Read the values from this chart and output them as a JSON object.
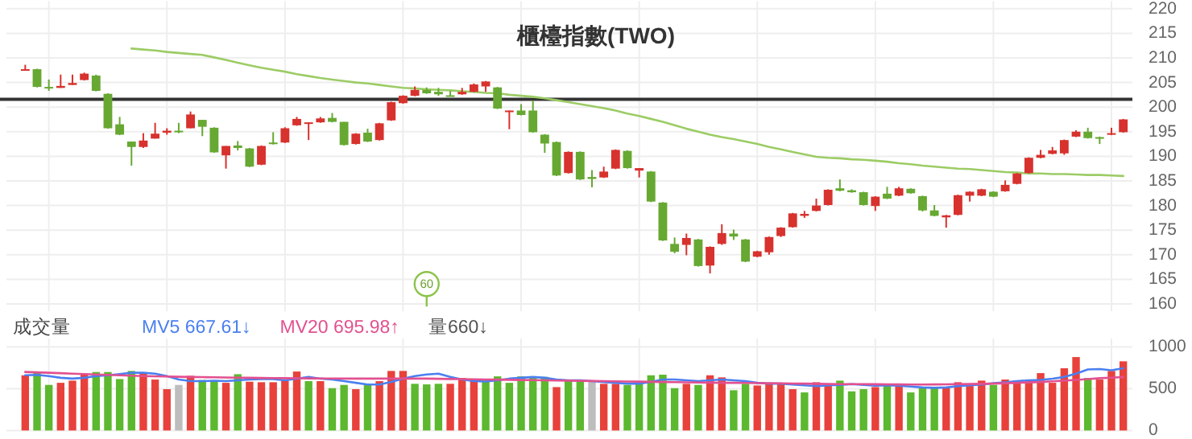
{
  "chart_data": [
    {
      "type": "candlestick",
      "title": "櫃檯指數(TWO)",
      "categories": [
        null,
        null,
        null,
        null,
        null,
        null,
        null,
        null,
        null,
        null,
        null,
        null,
        null,
        null,
        null,
        null,
        null,
        null,
        null,
        null,
        null,
        null,
        null,
        null,
        null,
        null,
        null,
        null,
        null,
        null,
        null,
        null,
        null,
        null,
        null,
        null,
        null,
        null,
        null,
        null,
        null,
        null,
        null,
        null,
        null,
        null,
        null,
        null,
        null,
        null,
        null,
        null,
        null,
        null,
        null,
        null,
        null,
        null,
        null,
        null,
        null,
        null,
        null,
        null,
        null,
        null,
        null,
        null,
        null,
        null,
        null,
        null,
        null,
        null,
        null,
        null,
        null,
        null,
        null,
        null,
        null,
        null,
        null,
        null,
        null,
        null,
        null,
        null,
        null,
        null,
        null,
        null,
        null,
        null
      ],
      "ohlc": [
        [
          207.5,
          208.6,
          207.4,
          207.7
        ],
        [
          207.7,
          207.8,
          204.0,
          204.1
        ],
        [
          204.1,
          205.6,
          203.3,
          203.8
        ],
        [
          203.9,
          206.6,
          203.9,
          204.3
        ],
        [
          204.5,
          206.6,
          204.5,
          204.9
        ],
        [
          205.5,
          207.0,
          205.4,
          206.8
        ],
        [
          206.4,
          206.6,
          203.2,
          203.3
        ],
        [
          202.7,
          202.8,
          195.6,
          195.7
        ],
        [
          196.5,
          198.0,
          194.3,
          194.4
        ],
        [
          193.0,
          193.0,
          188.1,
          191.9
        ],
        [
          191.9,
          194.7,
          191.7,
          193.2
        ],
        [
          193.6,
          196.8,
          193.6,
          194.6
        ],
        [
          194.8,
          195.7,
          194.4,
          195.2
        ],
        [
          195.2,
          196.8,
          194.7,
          194.9
        ],
        [
          195.7,
          199.1,
          195.7,
          198.5
        ],
        [
          197.4,
          197.4,
          194.1,
          196.0
        ],
        [
          195.8,
          195.9,
          190.7,
          190.8
        ],
        [
          190.2,
          192.1,
          187.5,
          192.1
        ],
        [
          192.2,
          193.1,
          191.2,
          191.7
        ],
        [
          191.6,
          191.7,
          187.8,
          187.9
        ],
        [
          188.3,
          192.2,
          188.2,
          192.1
        ],
        [
          192.8,
          194.9,
          192.4,
          192.5
        ],
        [
          192.8,
          195.9,
          192.7,
          195.7
        ],
        [
          196.3,
          198.0,
          196.2,
          197.6
        ],
        [
          196.6,
          196.9,
          193.3,
          196.9
        ],
        [
          196.9,
          198.0,
          196.8,
          197.7
        ],
        [
          197.8,
          198.8,
          196.9,
          197.0
        ],
        [
          197.0,
          197.0,
          192.2,
          192.3
        ],
        [
          192.5,
          194.7,
          192.4,
          194.6
        ],
        [
          194.8,
          195.6,
          192.9,
          193.0
        ],
        [
          193.3,
          196.8,
          193.2,
          196.7
        ],
        [
          197.3,
          201.1,
          197.2,
          201.0
        ],
        [
          200.8,
          202.4,
          200.7,
          202.3
        ],
        [
          202.3,
          204.2,
          202.2,
          203.5
        ],
        [
          203.5,
          204.0,
          202.7,
          202.8
        ],
        [
          203.1,
          203.9,
          202.3,
          202.6
        ],
        [
          202.4,
          203.3,
          202.2,
          202.3
        ],
        [
          202.6,
          203.9,
          202.5,
          203.1
        ],
        [
          203.1,
          204.8,
          203.0,
          204.6
        ],
        [
          204.2,
          205.3,
          203.1,
          205.2
        ],
        [
          204.0,
          204.1,
          199.6,
          199.7
        ],
        [
          199.0,
          199.3,
          195.5,
          199.3
        ],
        [
          199.3,
          200.6,
          198.3,
          198.4
        ],
        [
          199.3,
          201.3,
          194.8,
          194.9
        ],
        [
          194.4,
          194.5,
          190.7,
          192.6
        ],
        [
          192.9,
          193.0,
          186.0,
          186.1
        ],
        [
          186.6,
          191.0,
          186.5,
          190.9
        ],
        [
          190.9,
          191.0,
          185.2,
          185.3
        ],
        [
          185.8,
          187.2,
          183.7,
          185.4
        ],
        [
          185.7,
          187.9,
          185.6,
          186.9
        ],
        [
          187.5,
          191.4,
          187.4,
          191.3
        ],
        [
          191.1,
          191.2,
          187.5,
          187.6
        ],
        [
          187.1,
          187.6,
          185.7,
          187.6
        ],
        [
          186.9,
          187.0,
          180.7,
          180.8
        ],
        [
          180.6,
          180.7,
          172.8,
          172.9
        ],
        [
          172.2,
          173.5,
          170.3,
          170.6
        ],
        [
          172.0,
          174.3,
          169.9,
          173.4
        ],
        [
          173.1,
          173.2,
          167.6,
          167.7
        ],
        [
          167.8,
          171.7,
          166.2,
          171.6
        ],
        [
          172.2,
          176.2,
          172.0,
          174.4
        ],
        [
          174.3,
          175.1,
          173.0,
          173.7
        ],
        [
          173.1,
          173.2,
          168.5,
          168.6
        ],
        [
          169.6,
          170.8,
          169.5,
          170.7
        ],
        [
          170.5,
          173.7,
          170.0,
          173.6
        ],
        [
          173.8,
          175.6,
          173.6,
          175.5
        ],
        [
          175.6,
          178.5,
          175.5,
          178.4
        ],
        [
          177.9,
          178.9,
          177.5,
          178.3
        ],
        [
          178.9,
          181.4,
          178.8,
          180.0
        ],
        [
          180.1,
          183.3,
          180.0,
          183.2
        ],
        [
          183.5,
          185.3,
          182.9,
          183.0
        ],
        [
          183.1,
          183.3,
          182.6,
          182.7
        ],
        [
          182.7,
          182.8,
          180.0,
          180.1
        ],
        [
          179.9,
          181.9,
          178.9,
          181.8
        ],
        [
          182.4,
          183.8,
          181.3,
          181.4
        ],
        [
          182.0,
          183.8,
          181.9,
          183.5
        ],
        [
          183.4,
          183.5,
          182.4,
          182.5
        ],
        [
          181.9,
          182.0,
          178.8,
          179.0
        ],
        [
          179.0,
          180.1,
          177.8,
          177.9
        ],
        [
          177.6,
          178.1,
          175.5,
          178.0
        ],
        [
          178.1,
          182.2,
          178.0,
          182.1
        ],
        [
          182.0,
          182.9,
          180.8,
          182.8
        ],
        [
          182.0,
          183.4,
          181.9,
          183.3
        ],
        [
          182.8,
          182.9,
          181.7,
          181.8
        ],
        [
          182.9,
          185.1,
          182.8,
          184.2
        ],
        [
          184.4,
          186.6,
          184.3,
          186.5
        ],
        [
          186.6,
          189.8,
          186.5,
          189.7
        ],
        [
          189.7,
          191.3,
          189.6,
          190.3
        ],
        [
          190.5,
          191.9,
          190.4,
          191.2
        ],
        [
          190.6,
          193.4,
          190.3,
          193.3
        ],
        [
          194.0,
          195.3,
          193.9,
          195.0
        ],
        [
          195.0,
          195.8,
          193.6,
          193.7
        ],
        [
          193.9,
          194.0,
          192.5,
          193.7
        ],
        [
          194.4,
          195.8,
          194.3,
          194.7
        ],
        [
          194.9,
          197.6,
          194.8,
          197.5
        ]
      ],
      "colors": [
        "#d7322e",
        "#67a832",
        "#67a832",
        "#d7322e",
        "#d7322e",
        "#d7322e",
        "#67a832",
        "#67a832",
        "#67a832",
        "#67a832",
        "#d7322e",
        "#d7322e",
        "#d7322e",
        "#67a832",
        "#d7322e",
        "#67a832",
        "#67a832",
        "#d7322e",
        "#67a832",
        "#67a832",
        "#d7322e",
        "#67a832",
        "#d7322e",
        "#d7322e",
        "#d7322e",
        "#d7322e",
        "#67a832",
        "#67a832",
        "#d7322e",
        "#67a832",
        "#d7322e",
        "#d7322e",
        "#d7322e",
        "#d7322e",
        "#67a832",
        "#67a832",
        "#67a832",
        "#d7322e",
        "#d7322e",
        "#d7322e",
        "#67a832",
        "#d7322e",
        "#67a832",
        "#67a832",
        "#67a832",
        "#67a832",
        "#d7322e",
        "#67a832",
        "#67a832",
        "#d7322e",
        "#d7322e",
        "#67a832",
        "#d7322e",
        "#67a832",
        "#67a832",
        "#67a832",
        "#d7322e",
        "#67a832",
        "#d7322e",
        "#d7322e",
        "#67a832",
        "#67a832",
        "#d7322e",
        "#d7322e",
        "#d7322e",
        "#d7322e",
        "#d7322e",
        "#d7322e",
        "#d7322e",
        "#67a832",
        "#67a832",
        "#67a832",
        "#d7322e",
        "#67a832",
        "#d7322e",
        "#67a832",
        "#67a832",
        "#67a832",
        "#d7322e",
        "#d7322e",
        "#d7322e",
        "#d7322e",
        "#67a832",
        "#d7322e",
        "#d7322e",
        "#d7322e",
        "#d7322e",
        "#d7322e",
        "#d7322e",
        "#d7322e",
        "#67a832",
        "#67a832",
        "#d7322e",
        "#d7322e"
      ],
      "series": [
        {
          "type": "line",
          "color": "#9ccc65",
          "values": [
            null,
            null,
            null,
            null,
            null,
            null,
            null,
            null,
            null,
            211.9,
            211.7,
            211.5,
            211.2,
            211.0,
            210.8,
            210.6,
            210.1,
            209.6,
            209.0,
            208.5,
            208.0,
            207.6,
            207.2,
            206.7,
            206.3,
            205.9,
            205.6,
            205.3,
            205.0,
            204.8,
            204.5,
            204.2,
            203.9,
            203.8,
            203.6,
            203.5,
            203.4,
            203.2,
            203.1,
            202.9,
            202.8,
            202.5,
            202.3,
            202.1,
            201.8,
            201.4,
            201.0,
            200.6,
            200.2,
            199.8,
            199.3,
            198.7,
            198.2,
            197.6,
            197.0,
            196.3,
            195.6,
            195.0,
            194.4,
            193.9,
            193.5,
            193.0,
            192.5,
            191.9,
            191.4,
            190.9,
            190.4,
            189.9,
            189.7,
            189.6,
            189.4,
            189.3,
            189.1,
            188.9,
            188.6,
            188.4,
            188.1,
            187.9,
            187.7,
            187.5,
            187.4,
            187.2,
            187.0,
            186.8,
            186.7,
            186.5,
            186.5,
            186.4,
            186.4,
            186.3,
            186.2,
            186.2,
            186.1,
            186.0
          ]
        }
      ],
      "ref_lines": [
        {
          "axis": "y",
          "value": 201.6,
          "color": "#333333"
        }
      ],
      "annotations": [
        "60"
      ],
      "ylim": [
        158.5,
        221.5
      ],
      "yticks": [
        160,
        165,
        170,
        175,
        180,
        185,
        190,
        195,
        200,
        205,
        210,
        215,
        220
      ],
      "grid": true,
      "tick_labels": "y"
    },
    {
      "type": "bar",
      "title": "成交量",
      "categories": [
        null,
        null,
        null,
        null,
        null,
        null,
        null,
        null,
        null,
        null,
        null,
        null,
        null,
        null,
        null,
        null,
        null,
        null,
        null,
        null,
        null,
        null,
        null,
        null,
        null,
        null,
        null,
        null,
        null,
        null,
        null,
        null,
        null,
        null,
        null,
        null,
        null,
        null,
        null,
        null,
        null,
        null,
        null,
        null,
        null,
        null,
        null,
        null,
        null,
        null,
        null,
        null,
        null,
        null,
        null,
        null,
        null,
        null,
        null,
        null,
        null,
        null,
        null,
        null,
        null,
        null,
        null,
        null,
        null,
        null,
        null,
        null,
        null,
        null,
        null,
        null,
        null,
        null,
        null,
        null,
        null,
        null,
        null,
        null,
        null,
        null,
        null,
        null,
        null,
        null,
        null,
        null,
        null,
        null
      ],
      "series": [
        {
          "type": "bar",
          "values": [
            660,
            705,
            545,
            570,
            596,
            680,
            699,
            699,
            615,
            712,
            680,
            609,
            494,
            545,
            654,
            603,
            583,
            570,
            673,
            583,
            577,
            577,
            596,
            705,
            590,
            590,
            506,
            545,
            494,
            545,
            590,
            712,
            712,
            558,
            551,
            558,
            558,
            628,
            596,
            596,
            647,
            570,
            647,
            628,
            641,
            519,
            596,
            596,
            596,
            558,
            558,
            545,
            558,
            660,
            667,
            506,
            558,
            545,
            660,
            635,
            481,
            558,
            538,
            570,
            564,
            494,
            455,
            577,
            551,
            596,
            468,
            494,
            519,
            558,
            538,
            455,
            506,
            506,
            519,
            577,
            545,
            596,
            545,
            609,
            596,
            609,
            686,
            570,
            744,
            878,
            628,
            609,
            712,
            827
          ],
          "colors": [
            "#e8413b",
            "#5cb82e",
            "#5cb82e",
            "#e8413b",
            "#e8413b",
            "#e8413b",
            "#5cb82e",
            "#5cb82e",
            "#5cb82e",
            "#5cb82e",
            "#e8413b",
            "#e8413b",
            "#e8413b",
            "#bdbdbd",
            "#e8413b",
            "#5cb82e",
            "#5cb82e",
            "#e8413b",
            "#5cb82e",
            "#e8413b",
            "#e8413b",
            "#e8413b",
            "#e8413b",
            "#e8413b",
            "#5cb82e",
            "#e8413b",
            "#5cb82e",
            "#5cb82e",
            "#e8413b",
            "#5cb82e",
            "#e8413b",
            "#e8413b",
            "#e8413b",
            "#5cb82e",
            "#5cb82e",
            "#5cb82e",
            "#e8413b",
            "#e8413b",
            "#e8413b",
            "#5cb82e",
            "#5cb82e",
            "#5cb82e",
            "#5cb82e",
            "#5cb82e",
            "#5cb82e",
            "#e8413b",
            "#5cb82e",
            "#5cb82e",
            "#bdbdbd",
            "#e8413b",
            "#e8413b",
            "#5cb82e",
            "#5cb82e",
            "#5cb82e",
            "#5cb82e",
            "#5cb82e",
            "#e8413b",
            "#5cb82e",
            "#e8413b",
            "#e8413b",
            "#5cb82e",
            "#5cb82e",
            "#e8413b",
            "#e8413b",
            "#e8413b",
            "#e8413b",
            "#5cb82e",
            "#e8413b",
            "#e8413b",
            "#5cb82e",
            "#5cb82e",
            "#5cb82e",
            "#e8413b",
            "#5cb82e",
            "#e8413b",
            "#5cb82e",
            "#5cb82e",
            "#5cb82e",
            "#e8413b",
            "#e8413b",
            "#e8413b",
            "#e8413b",
            "#5cb82e",
            "#e8413b",
            "#e8413b",
            "#e8413b",
            "#e8413b",
            "#e8413b",
            "#e8413b",
            "#e8413b",
            "#5cb82e",
            "#e8413b",
            "#e8413b",
            "#e8413b"
          ]
        },
        {
          "type": "line",
          "name": "MV5 667.61↓",
          "color": "#4a7ff0",
          "values": [
            660,
            665,
            650,
            630,
            620,
            630,
            650,
            660,
            675,
            690,
            690,
            680,
            650,
            610,
            590,
            590,
            595,
            590,
            600,
            610,
            615,
            615,
            600,
            620,
            640,
            620,
            610,
            590,
            570,
            550,
            550,
            580,
            620,
            650,
            670,
            680,
            640,
            610,
            590,
            585,
            600,
            620,
            630,
            640,
            630,
            610,
            600,
            600,
            590,
            580,
            570,
            560,
            560,
            580,
            610,
            610,
            600,
            590,
            600,
            610,
            600,
            590,
            570,
            560,
            560,
            550,
            540,
            530,
            540,
            545,
            555,
            545,
            535,
            540,
            535,
            525,
            515,
            510,
            515,
            530,
            540,
            550,
            565,
            575,
            590,
            600,
            605,
            620,
            640,
            680,
            730,
            735,
            720,
            745
          ]
        },
        {
          "type": "line",
          "name": "MV20 695.98↑",
          "color": "#e2508f",
          "values": [
            700,
            695,
            690,
            685,
            680,
            675,
            670,
            665,
            660,
            655,
            650,
            648,
            645,
            642,
            640,
            638,
            636,
            634,
            632,
            630,
            628,
            626,
            625,
            624,
            623,
            622,
            621,
            620,
            620,
            620,
            620,
            620,
            620,
            620,
            620,
            618,
            616,
            614,
            612,
            610,
            608,
            606,
            604,
            602,
            600,
            598,
            596,
            594,
            592,
            590,
            588,
            586,
            584,
            582,
            580,
            578,
            576,
            574,
            572,
            570,
            570,
            568,
            566,
            565,
            564,
            562,
            560,
            558,
            556,
            555,
            555,
            554,
            553,
            552,
            551,
            550,
            550,
            551,
            552,
            554,
            556,
            558,
            560,
            565,
            570,
            575,
            580,
            588,
            596,
            605,
            615,
            625,
            632,
            640
          ]
        }
      ],
      "annotations": [
        "量660↓"
      ],
      "ylim": [
        0,
        1100
      ],
      "yticks": [
        0,
        500,
        1000
      ],
      "grid": true,
      "legend": "top left",
      "tick_labels": "y"
    }
  ]
}
